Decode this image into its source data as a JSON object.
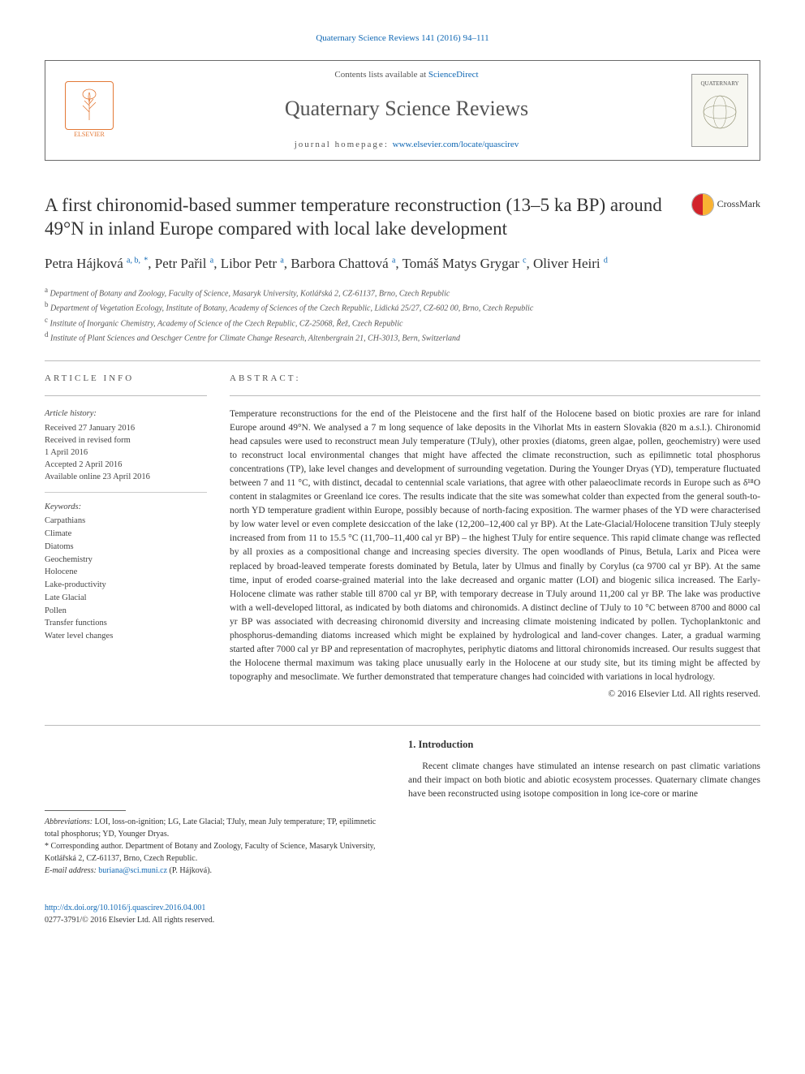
{
  "journal_ref": {
    "text": "Quaternary Science Reviews 141 (2016) 94–111",
    "href": "#"
  },
  "header": {
    "elsevier_label": "ELSEVIER",
    "contents_prefix": "Contents lists available at ",
    "contents_link": "ScienceDirect",
    "journal_name": "Quaternary Science Reviews",
    "homepage_prefix": "journal homepage: ",
    "homepage_link": "www.elsevier.com/locate/quascirev",
    "cover_label": "QUATERNARY"
  },
  "crossmark_label": "CrossMark",
  "title": "A first chironomid-based summer temperature reconstruction (13–5 ka BP) around 49°N in inland Europe compared with local lake development",
  "authors_html": "Petra Hájková <sup class='aff-link'>a, b,</sup> <sup class='corr-star'>*</sup>, Petr Pařil <sup class='aff-link'>a</sup>, Libor Petr <sup class='aff-link'>a</sup>, Barbora Chattová <sup class='aff-link'>a</sup>, Tomáš Matys Grygar <sup class='aff-link'>c</sup>, Oliver Heiri <sup class='aff-link'>d</sup>",
  "affiliations": [
    {
      "sup": "a",
      "text": "Department of Botany and Zoology, Faculty of Science, Masaryk University, Kotlářská 2, CZ-61137, Brno, Czech Republic"
    },
    {
      "sup": "b",
      "text": "Department of Vegetation Ecology, Institute of Botany, Academy of Sciences of the Czech Republic, Lidická 25/27, CZ-602 00, Brno, Czech Republic"
    },
    {
      "sup": "c",
      "text": "Institute of Inorganic Chemistry, Academy of Science of the Czech Republic, CZ-25068, Řež, Czech Republic"
    },
    {
      "sup": "d",
      "text": "Institute of Plant Sciences and Oeschger Centre for Climate Change Research, Altenbergrain 21, CH-3013, Bern, Switzerland"
    }
  ],
  "article_info": {
    "heading": "ARTICLE INFO",
    "history_label": "Article history:",
    "history": [
      "Received 27 January 2016",
      "Received in revised form",
      "1 April 2016",
      "Accepted 2 April 2016",
      "Available online 23 April 2016"
    ],
    "keywords_label": "Keywords:",
    "keywords": [
      "Carpathians",
      "Climate",
      "Diatoms",
      "Geochemistry",
      "Holocene",
      "Lake-productivity",
      "Late Glacial",
      "Pollen",
      "Transfer functions",
      "Water level changes"
    ]
  },
  "abstract": {
    "heading": "ABSTRACT",
    "text": "Temperature reconstructions for the end of the Pleistocene and the first half of the Holocene based on biotic proxies are rare for inland Europe around 49°N. We analysed a 7 m long sequence of lake deposits in the Vihorlat Mts in eastern Slovakia (820 m a.s.l.). Chironomid head capsules were used to reconstruct mean July temperature (TJuly), other proxies (diatoms, green algae, pollen, geochemistry) were used to reconstruct local environmental changes that might have affected the climate reconstruction, such as epilimnetic total phosphorus concentrations (TP), lake level changes and development of surrounding vegetation. During the Younger Dryas (YD), temperature fluctuated between 7 and 11 °C, with distinct, decadal to centennial scale variations, that agree with other palaeoclimate records in Europe such as δ¹⁸O content in stalagmites or Greenland ice cores. The results indicate that the site was somewhat colder than expected from the general south-to-north YD temperature gradient within Europe, possibly because of north-facing exposition. The warmer phases of the YD were characterised by low water level or even complete desiccation of the lake (12,200–12,400 cal yr BP). At the Late-Glacial/Holocene transition TJuly steeply increased from from 11 to 15.5 °C (11,700–11,400 cal yr BP) – the highest TJuly for entire sequence. This rapid climate change was reflected by all proxies as a compositional change and increasing species diversity. The open woodlands of Pinus, Betula, Larix and Picea were replaced by broad-leaved temperate forests dominated by Betula, later by Ulmus and finally by Corylus (ca 9700 cal yr BP). At the same time, input of eroded coarse-grained material into the lake decreased and organic matter (LOI) and biogenic silica increased. The Early-Holocene climate was rather stable till 8700 cal yr BP, with temporary decrease in TJuly around 11,200 cal yr BP. The lake was productive with a well-developed littoral, as indicated by both diatoms and chironomids. A distinct decline of TJuly to 10 °C between 8700 and 8000 cal yr BP was associated with decreasing chironomid diversity and increasing climate moistening indicated by pollen. Tychoplanktonic and phosphorus-demanding diatoms increased which might be explained by hydrological and land-cover changes. Later, a gradual warming started after 7000 cal yr BP and representation of macrophytes, periphytic diatoms and littoral chironomids increased. Our results suggest that the Holocene thermal maximum was taking place unusually early in the Holocene at our study site, but its timing might be affected by topography and mesoclimate. We further demonstrated that temperature changes had coincided with variations in local hydrology.",
    "copyright": "© 2016 Elsevier Ltd. All rights reserved."
  },
  "footnotes": {
    "abbrev_label": "Abbreviations:",
    "abbrev_text": " LOI, loss-on-ignition; LG, Late Glacial; TJuly, mean July temperature; TP, epilimnetic total phosphorus; YD, Younger Dryas.",
    "corr_label": "* Corresponding author. ",
    "corr_text": "Department of Botany and Zoology, Faculty of Science, Masaryk University, Kotlářská 2, CZ-61137, Brno, Czech Republic.",
    "email_label": "E-mail address: ",
    "email": "buriana@sci.muni.cz",
    "email_person": " (P. Hájková)."
  },
  "intro": {
    "heading": "1.  Introduction",
    "text": "Recent climate changes have stimulated an intense research on past climatic variations and their impact on both biotic and abiotic ecosystem processes. Quaternary climate changes have been reconstructed using isotope composition in long ice-core or marine"
  },
  "doi": {
    "url": "http://dx.doi.org/10.1016/j.quascirev.2016.04.001",
    "issn_line": "0277-3791/© 2016 Elsevier Ltd. All rights reserved."
  },
  "colors": {
    "link": "#1068b4",
    "text": "#333333",
    "muted": "#555555",
    "border": "#6a6a6a",
    "elsevier": "#e37937"
  }
}
